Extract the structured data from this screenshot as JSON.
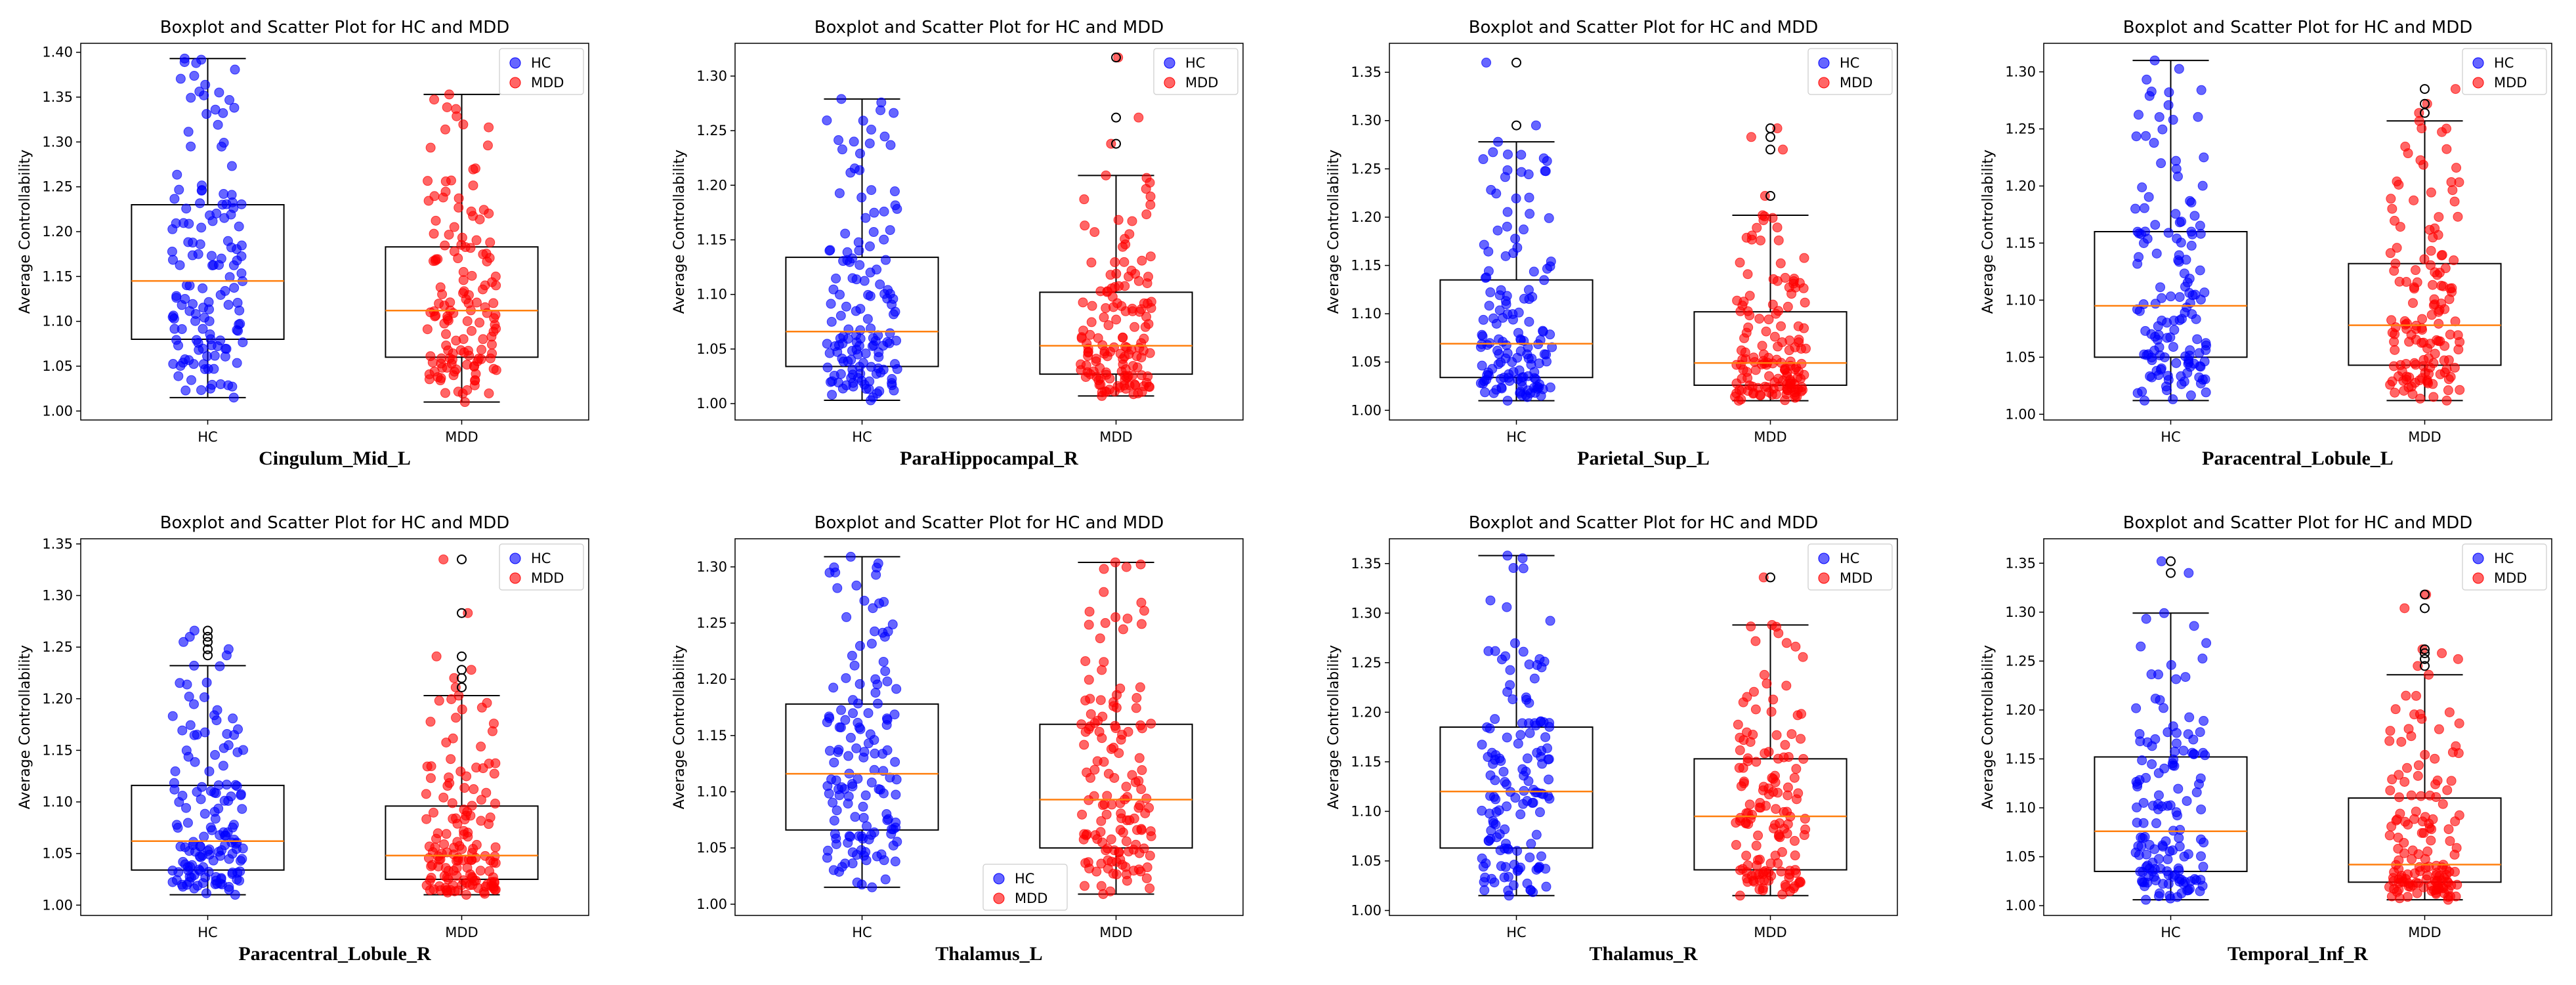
{
  "figure": {
    "colors": {
      "hc": "#0000ff",
      "mdd": "#ff0000",
      "median": "#ff7f0e",
      "box": "#000000"
    }
  },
  "chart_data": [
    {
      "type": "box",
      "title": "Boxplot and Scatter Plot for HC and MDD",
      "region": "Cingulum_Mid_L",
      "ylabel": "Average Controllability",
      "categories": [
        "HC",
        "MDD"
      ],
      "ylim": [
        0.99,
        1.41
      ],
      "yticks": [
        1.0,
        1.05,
        1.1,
        1.15,
        1.2,
        1.25,
        1.3,
        1.35,
        1.4
      ],
      "legend": {
        "position": "top-right",
        "entries": [
          "HC",
          "MDD"
        ]
      },
      "groups": [
        {
          "name": "HC",
          "whisker_low": 1.015,
          "q1": 1.08,
          "median": 1.145,
          "q3": 1.23,
          "whisker_high": 1.393,
          "outliers": []
        },
        {
          "name": "MDD",
          "whisker_low": 1.01,
          "q1": 1.06,
          "median": 1.112,
          "q3": 1.183,
          "whisker_high": 1.353,
          "outliers": []
        }
      ]
    },
    {
      "type": "box",
      "title": "Boxplot and Scatter Plot for HC and MDD",
      "region": "ParaHippocampal_R",
      "ylabel": "Average Controllability",
      "categories": [
        "HC",
        "MDD"
      ],
      "ylim": [
        0.985,
        1.33
      ],
      "yticks": [
        1.0,
        1.05,
        1.1,
        1.15,
        1.2,
        1.25,
        1.3
      ],
      "legend": {
        "position": "top-right",
        "entries": [
          "HC",
          "MDD"
        ]
      },
      "groups": [
        {
          "name": "HC",
          "whisker_low": 1.003,
          "q1": 1.034,
          "median": 1.066,
          "q3": 1.134,
          "whisker_high": 1.279,
          "outliers": []
        },
        {
          "name": "MDD",
          "whisker_low": 1.007,
          "q1": 1.027,
          "median": 1.053,
          "q3": 1.102,
          "whisker_high": 1.209,
          "outliers": [
            1.238,
            1.262,
            1.317
          ]
        }
      ]
    },
    {
      "type": "box",
      "title": "Boxplot and Scatter Plot for HC and MDD",
      "region": "Parietal_Sup_L",
      "ylabel": "Average Controllability",
      "categories": [
        "HC",
        "MDD"
      ],
      "ylim": [
        0.99,
        1.38
      ],
      "yticks": [
        1.0,
        1.05,
        1.1,
        1.15,
        1.2,
        1.25,
        1.3,
        1.35
      ],
      "legend": {
        "position": "top-right",
        "entries": [
          "HC",
          "MDD"
        ]
      },
      "groups": [
        {
          "name": "HC",
          "whisker_low": 1.01,
          "q1": 1.034,
          "median": 1.069,
          "q3": 1.135,
          "whisker_high": 1.278,
          "outliers": [
            1.295,
            1.36
          ]
        },
        {
          "name": "MDD",
          "whisker_low": 1.01,
          "q1": 1.026,
          "median": 1.049,
          "q3": 1.102,
          "whisker_high": 1.202,
          "outliers": [
            1.222,
            1.27,
            1.283,
            1.292
          ]
        }
      ]
    },
    {
      "type": "box",
      "title": "Boxplot and Scatter Plot for HC and MDD",
      "region": "Paracentral_Lobule_L",
      "ylabel": "Average Controllability",
      "categories": [
        "HC",
        "MDD"
      ],
      "ylim": [
        0.995,
        1.325
      ],
      "yticks": [
        1.0,
        1.05,
        1.1,
        1.15,
        1.2,
        1.25,
        1.3
      ],
      "legend": {
        "position": "top-right",
        "entries": [
          "HC",
          "MDD"
        ]
      },
      "groups": [
        {
          "name": "HC",
          "whisker_low": 1.012,
          "q1": 1.05,
          "median": 1.095,
          "q3": 1.16,
          "whisker_high": 1.31,
          "outliers": []
        },
        {
          "name": "MDD",
          "whisker_low": 1.012,
          "q1": 1.043,
          "median": 1.078,
          "q3": 1.132,
          "whisker_high": 1.257,
          "outliers": [
            1.264,
            1.272,
            1.285
          ]
        }
      ]
    },
    {
      "type": "box",
      "title": "Boxplot and Scatter Plot for HC and MDD",
      "region": "Paracentral_Lobule_R",
      "ylabel": "Average Controllability",
      "categories": [
        "HC",
        "MDD"
      ],
      "ylim": [
        0.99,
        1.355
      ],
      "yticks": [
        1.0,
        1.05,
        1.1,
        1.15,
        1.2,
        1.25,
        1.3,
        1.35
      ],
      "legend": {
        "position": "top-right",
        "entries": [
          "HC",
          "MDD"
        ]
      },
      "groups": [
        {
          "name": "HC",
          "whisker_low": 1.01,
          "q1": 1.034,
          "median": 1.062,
          "q3": 1.116,
          "whisker_high": 1.232,
          "outliers": [
            1.242,
            1.248,
            1.255,
            1.26,
            1.266
          ]
        },
        {
          "name": "MDD",
          "whisker_low": 1.01,
          "q1": 1.025,
          "median": 1.048,
          "q3": 1.096,
          "whisker_high": 1.203,
          "outliers": [
            1.211,
            1.22,
            1.228,
            1.241,
            1.283,
            1.335
          ]
        }
      ]
    },
    {
      "type": "box",
      "title": "Boxplot and Scatter Plot for HC and MDD",
      "region": "Thalamus_L",
      "ylabel": "Average Controllability",
      "categories": [
        "HC",
        "MDD"
      ],
      "ylim": [
        0.99,
        1.325
      ],
      "yticks": [
        1.0,
        1.05,
        1.1,
        1.15,
        1.2,
        1.25,
        1.3
      ],
      "legend": {
        "position": "bottom-center",
        "entries": [
          "HC",
          "MDD"
        ]
      },
      "groups": [
        {
          "name": "HC",
          "whisker_low": 1.015,
          "q1": 1.066,
          "median": 1.116,
          "q3": 1.178,
          "whisker_high": 1.309,
          "outliers": []
        },
        {
          "name": "MDD",
          "whisker_low": 1.009,
          "q1": 1.05,
          "median": 1.093,
          "q3": 1.16,
          "whisker_high": 1.304,
          "outliers": []
        }
      ]
    },
    {
      "type": "box",
      "title": "Boxplot and Scatter Plot for HC and MDD",
      "region": "Thalamus_R",
      "ylabel": "Average Controllability",
      "categories": [
        "HC",
        "MDD"
      ],
      "ylim": [
        0.995,
        1.375
      ],
      "yticks": [
        1.0,
        1.05,
        1.1,
        1.15,
        1.2,
        1.25,
        1.3,
        1.35
      ],
      "legend": {
        "position": "top-right",
        "entries": [
          "HC",
          "MDD"
        ]
      },
      "groups": [
        {
          "name": "HC",
          "whisker_low": 1.015,
          "q1": 1.063,
          "median": 1.12,
          "q3": 1.185,
          "whisker_high": 1.358,
          "outliers": []
        },
        {
          "name": "MDD",
          "whisker_low": 1.015,
          "q1": 1.041,
          "median": 1.095,
          "q3": 1.153,
          "whisker_high": 1.288,
          "outliers": [
            1.336
          ]
        }
      ]
    },
    {
      "type": "box",
      "title": "Boxplot and Scatter Plot for HC and MDD",
      "region": "Temporal_Inf_R",
      "ylabel": "Average Controllability",
      "categories": [
        "HC",
        "MDD"
      ],
      "ylim": [
        0.99,
        1.375
      ],
      "yticks": [
        1.0,
        1.05,
        1.1,
        1.15,
        1.2,
        1.25,
        1.3,
        1.35
      ],
      "legend": {
        "position": "top-right",
        "entries": [
          "HC",
          "MDD"
        ]
      },
      "groups": [
        {
          "name": "HC",
          "whisker_low": 1.006,
          "q1": 1.035,
          "median": 1.076,
          "q3": 1.152,
          "whisker_high": 1.299,
          "outliers": [
            1.34,
            1.352
          ]
        },
        {
          "name": "MDD",
          "whisker_low": 1.006,
          "q1": 1.024,
          "median": 1.042,
          "q3": 1.11,
          "whisker_high": 1.236,
          "outliers": [
            1.245,
            1.252,
            1.258,
            1.262,
            1.304,
            1.318
          ]
        }
      ]
    }
  ]
}
